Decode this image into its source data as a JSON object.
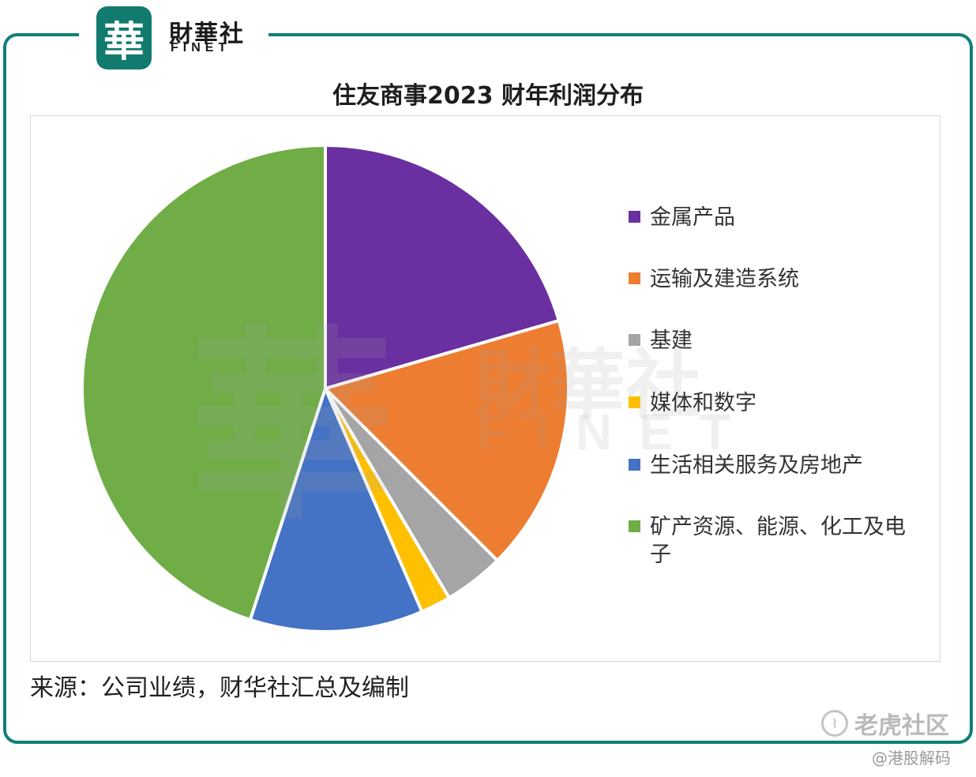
{
  "brand": {
    "logo_char": "華",
    "name_cn": "財華社",
    "name_en": "FINET"
  },
  "chart_data": {
    "type": "pie",
    "title": "住友商事2023 财年利润分布",
    "slices": [
      {
        "label": "金属产品",
        "value": 20.5,
        "color": "#6a2fa0"
      },
      {
        "label": "运输及建造系统",
        "value": 17.0,
        "color": "#ed7d31"
      },
      {
        "label": "基建",
        "value": 4.0,
        "color": "#a5a5a5"
      },
      {
        "label": "媒体和数字",
        "value": 2.0,
        "color": "#ffc000"
      },
      {
        "label": "生活相关服务及房地产",
        "value": 11.5,
        "color": "#4472c4"
      },
      {
        "label": "矿产资源、能源、化工及电子",
        "value": 45.0,
        "color": "#70ad47"
      }
    ],
    "start_angle_deg": 0,
    "direction": "clockwise",
    "legend_position": "right"
  },
  "source_text": "来源：公司业绩，财华社汇总及编制",
  "watermark": {
    "char": "華",
    "cn": "財華社",
    "en": "FINET"
  },
  "platform": {
    "name": "老虎社区",
    "handle": "@港股解码"
  }
}
